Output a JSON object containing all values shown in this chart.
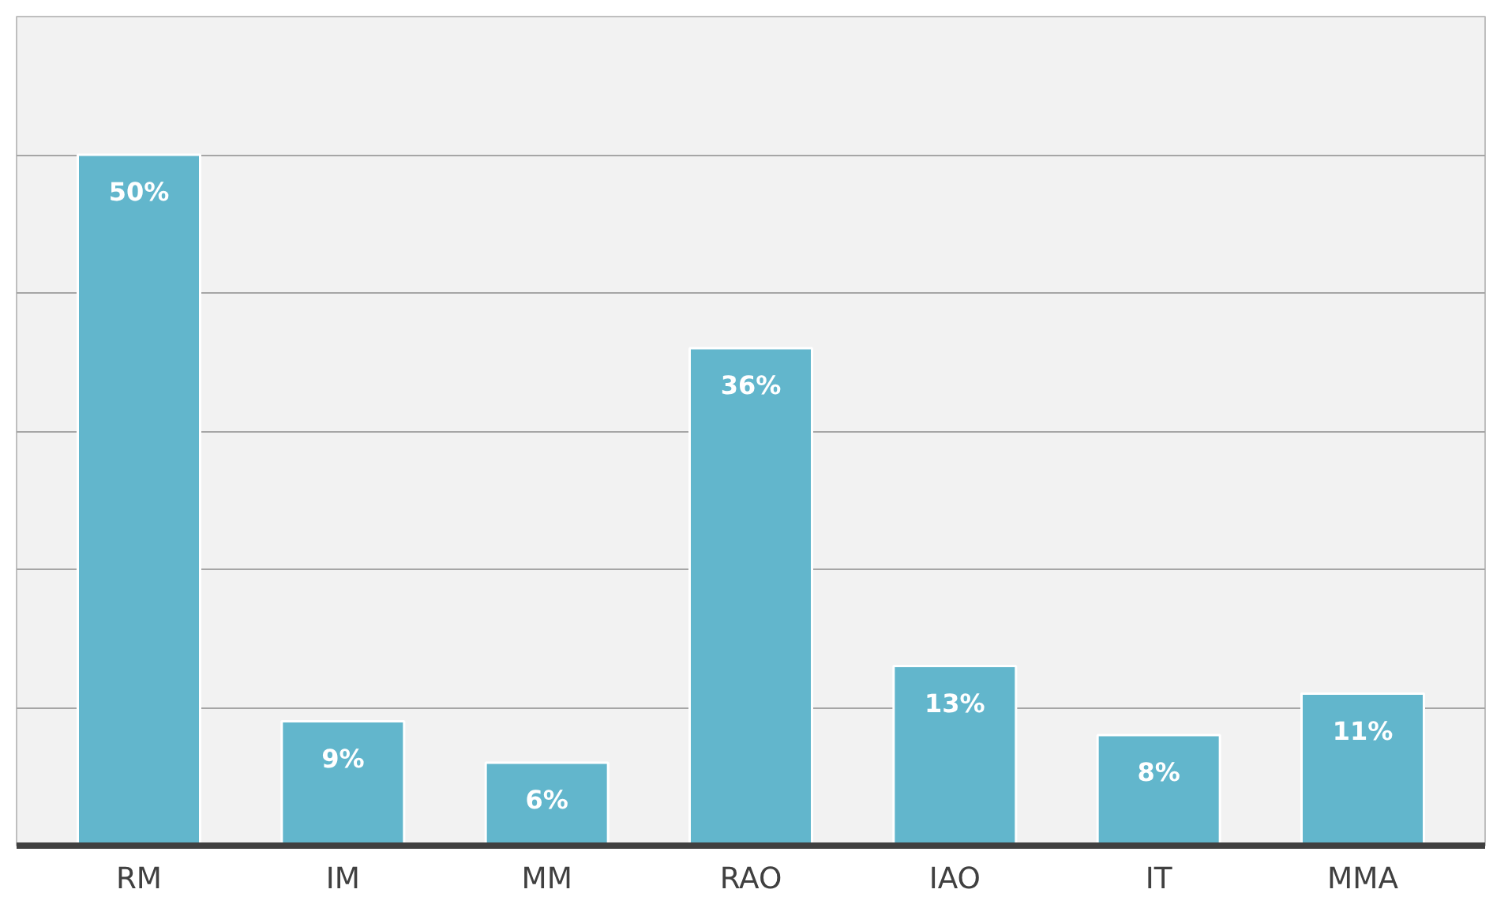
{
  "chart_data": {
    "type": "bar",
    "categories": [
      "RM",
      "IM",
      "MM",
      "RAO",
      "IAO",
      "IT",
      "MMA"
    ],
    "values": [
      50,
      9,
      6,
      36,
      13,
      8,
      11
    ],
    "value_labels": [
      "50%",
      "9%",
      "6%",
      "36%",
      "13%",
      "8%",
      "11%"
    ],
    "color": "#62b6cc",
    "tick_labels": "x",
    "grid": "y"
  }
}
